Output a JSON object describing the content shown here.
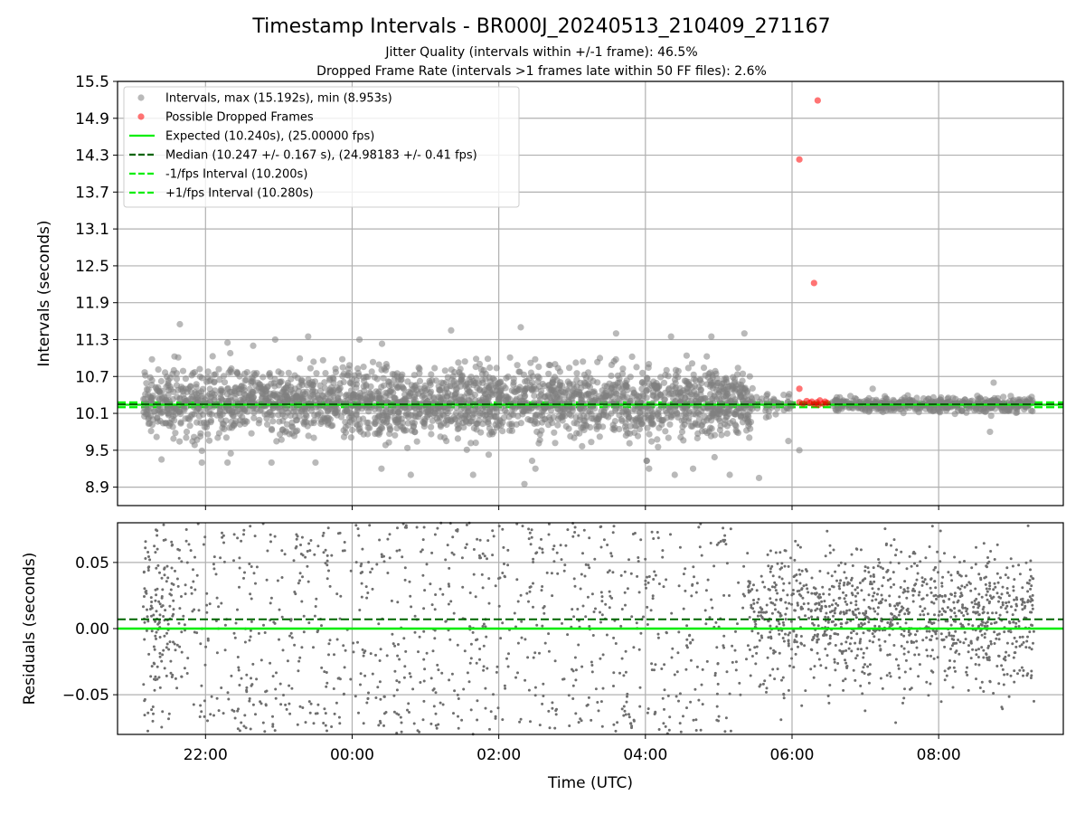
{
  "title": "Timestamp Intervals - BR000J_20240513_210409_271167",
  "subtitle_1": "Jitter Quality (intervals within +/-1 frame): 46.5%",
  "subtitle_2": "Dropped Frame Rate (intervals >1 frames late within 50 FF files): 2.6%",
  "xlabel": "Time (UTC)",
  "colors": {
    "points": "#808080",
    "dropped": "#ff0000",
    "expected": "#00ee00",
    "median": "#006400",
    "fps_bounds": "#00ee00",
    "grid": "#b0b0b0"
  },
  "chart_data": [
    {
      "name": "intervals",
      "type": "scatter",
      "ylabel": "Intervals (seconds)",
      "x_axis": "time (hours relative to 00:00 UTC, date rolls over at midnight)",
      "xlim": [
        -3.2,
        9.7
      ],
      "ylim": [
        8.6,
        15.5
      ],
      "xticks": [
        {
          "v": -2,
          "label": "22:00"
        },
        {
          "v": 0,
          "label": "00:00"
        },
        {
          "v": 2,
          "label": "02:00"
        },
        {
          "v": 4,
          "label": "04:00"
        },
        {
          "v": 6,
          "label": "06:00"
        },
        {
          "v": 8,
          "label": "08:00"
        }
      ],
      "yticks": [
        {
          "v": 8.9,
          "label": "8.9"
        },
        {
          "v": 9.5,
          "label": "9.5"
        },
        {
          "v": 10.1,
          "label": "10.1"
        },
        {
          "v": 10.7,
          "label": "10.7"
        },
        {
          "v": 11.3,
          "label": "11.3"
        },
        {
          "v": 11.9,
          "label": "11.9"
        },
        {
          "v": 12.5,
          "label": "12.5"
        },
        {
          "v": 13.1,
          "label": "13.1"
        },
        {
          "v": 13.7,
          "label": "13.7"
        },
        {
          "v": 14.3,
          "label": "14.3"
        },
        {
          "v": 14.9,
          "label": "14.9"
        },
        {
          "v": 15.5,
          "label": "15.5"
        }
      ],
      "grid": true,
      "legend_position": "top-left",
      "legend": [
        {
          "label": "Intervals, max (15.192s), min (8.953s)",
          "kind": "dot",
          "color": "#808080"
        },
        {
          "label": "Possible Dropped Frames",
          "kind": "dot",
          "color": "#ff0000"
        },
        {
          "label": "Expected (10.240s), (25.00000 fps)",
          "kind": "solid",
          "color": "#00ee00"
        },
        {
          "label": "Median (10.247 +/- 0.167 s), (24.98183 +/- 0.41 fps)",
          "kind": "dashed",
          "color": "#006400"
        },
        {
          "label": "-1/fps Interval (10.200s)",
          "kind": "dashed",
          "color": "#00ee00"
        },
        {
          "label": "+1/fps Interval (10.280s)",
          "kind": "dashed",
          "color": "#00ee00"
        }
      ],
      "hlines": [
        {
          "name": "expected",
          "y": 10.24,
          "style": "solid",
          "color": "#00ee00"
        },
        {
          "name": "median",
          "y": 10.247,
          "style": "dashed",
          "color": "#006400"
        },
        {
          "name": "minus-1fps",
          "y": 10.2,
          "style": "dashed",
          "color": "#00ee00"
        },
        {
          "name": "plus-1fps",
          "y": 10.28,
          "style": "dashed",
          "color": "#00ee00"
        }
      ],
      "gray_cloud": [
        {
          "x0": -2.85,
          "x1": 5.45,
          "center": 10.28,
          "spread": 0.28,
          "count": 2400
        },
        {
          "x0": 5.45,
          "x1": 6.0,
          "center": 10.25,
          "spread": 0.1,
          "count": 40
        },
        {
          "x0": 6.55,
          "x1": 9.3,
          "center": 10.24,
          "spread": 0.06,
          "count": 420
        }
      ],
      "gray_points": [
        {
          "x": -2.35,
          "y": 11.55
        },
        {
          "x": -1.7,
          "y": 11.25
        },
        {
          "x": -1.35,
          "y": 11.2
        },
        {
          "x": -1.05,
          "y": 11.3
        },
        {
          "x": -0.6,
          "y": 11.35
        },
        {
          "x": 0.1,
          "y": 11.3
        },
        {
          "x": 1.35,
          "y": 11.45
        },
        {
          "x": 2.3,
          "y": 11.5
        },
        {
          "x": 3.6,
          "y": 11.4
        },
        {
          "x": 4.35,
          "y": 11.35
        },
        {
          "x": 4.9,
          "y": 11.35
        },
        {
          "x": 5.35,
          "y": 11.4
        },
        {
          "x": -2.6,
          "y": 9.35
        },
        {
          "x": -2.05,
          "y": 9.3
        },
        {
          "x": -1.7,
          "y": 9.3
        },
        {
          "x": -1.1,
          "y": 9.3
        },
        {
          "x": -0.5,
          "y": 9.3
        },
        {
          "x": 0.4,
          "y": 9.2
        },
        {
          "x": 0.8,
          "y": 9.1
        },
        {
          "x": 1.65,
          "y": 9.1
        },
        {
          "x": 2.35,
          "y": 8.95
        },
        {
          "x": 2.5,
          "y": 9.2
        },
        {
          "x": 4.05,
          "y": 9.2
        },
        {
          "x": 4.4,
          "y": 9.1
        },
        {
          "x": 4.65,
          "y": 9.2
        },
        {
          "x": 5.15,
          "y": 9.1
        },
        {
          "x": 5.55,
          "y": 9.05
        },
        {
          "x": 6.1,
          "y": 9.5
        },
        {
          "x": 5.95,
          "y": 9.65
        },
        {
          "x": 8.7,
          "y": 9.8
        },
        {
          "x": 8.75,
          "y": 10.6
        },
        {
          "x": 7.1,
          "y": 10.5
        }
      ],
      "dropped_points": [
        {
          "x": 6.35,
          "y": 15.19
        },
        {
          "x": 6.1,
          "y": 14.23
        },
        {
          "x": 6.3,
          "y": 12.22
        },
        {
          "x": 6.1,
          "y": 10.5
        },
        {
          "x": 6.1,
          "y": 10.28
        },
        {
          "x": 6.15,
          "y": 10.26
        },
        {
          "x": 6.2,
          "y": 10.3
        },
        {
          "x": 6.24,
          "y": 10.27
        },
        {
          "x": 6.3,
          "y": 10.25
        },
        {
          "x": 6.34,
          "y": 10.28
        },
        {
          "x": 6.38,
          "y": 10.31
        },
        {
          "x": 6.42,
          "y": 10.26
        },
        {
          "x": 6.45,
          "y": 10.29
        },
        {
          "x": 6.48,
          "y": 10.27
        },
        {
          "x": 6.36,
          "y": 10.24
        },
        {
          "x": 6.27,
          "y": 10.29
        }
      ]
    },
    {
      "name": "residuals",
      "type": "scatter",
      "ylabel": "Residuals (seconds)",
      "xlim": [
        -3.2,
        9.7
      ],
      "ylim": [
        -0.08,
        0.08
      ],
      "yticks": [
        {
          "v": -0.05,
          "label": "−0.05"
        },
        {
          "v": 0.0,
          "label": "0.00"
        },
        {
          "v": 0.05,
          "label": "0.05"
        }
      ],
      "grid": true,
      "hlines": [
        {
          "name": "zero",
          "y": 0.0,
          "style": "solid",
          "color": "#00ee00"
        },
        {
          "name": "median-offset",
          "y": 0.007,
          "style": "dashed",
          "color": "#006400"
        }
      ],
      "residual_cloud": [
        {
          "x0": -2.85,
          "x1": 5.4,
          "kind": "uniform",
          "lo": -0.08,
          "hi": 0.08,
          "count": 1050
        },
        {
          "x0": -2.85,
          "x1": -2.4,
          "kind": "normal",
          "center": 0.01,
          "spread": 0.03,
          "count": 90
        },
        {
          "x0": 5.4,
          "x1": 9.3,
          "kind": "normal",
          "center": 0.01,
          "spread": 0.025,
          "count": 1150
        }
      ]
    }
  ]
}
